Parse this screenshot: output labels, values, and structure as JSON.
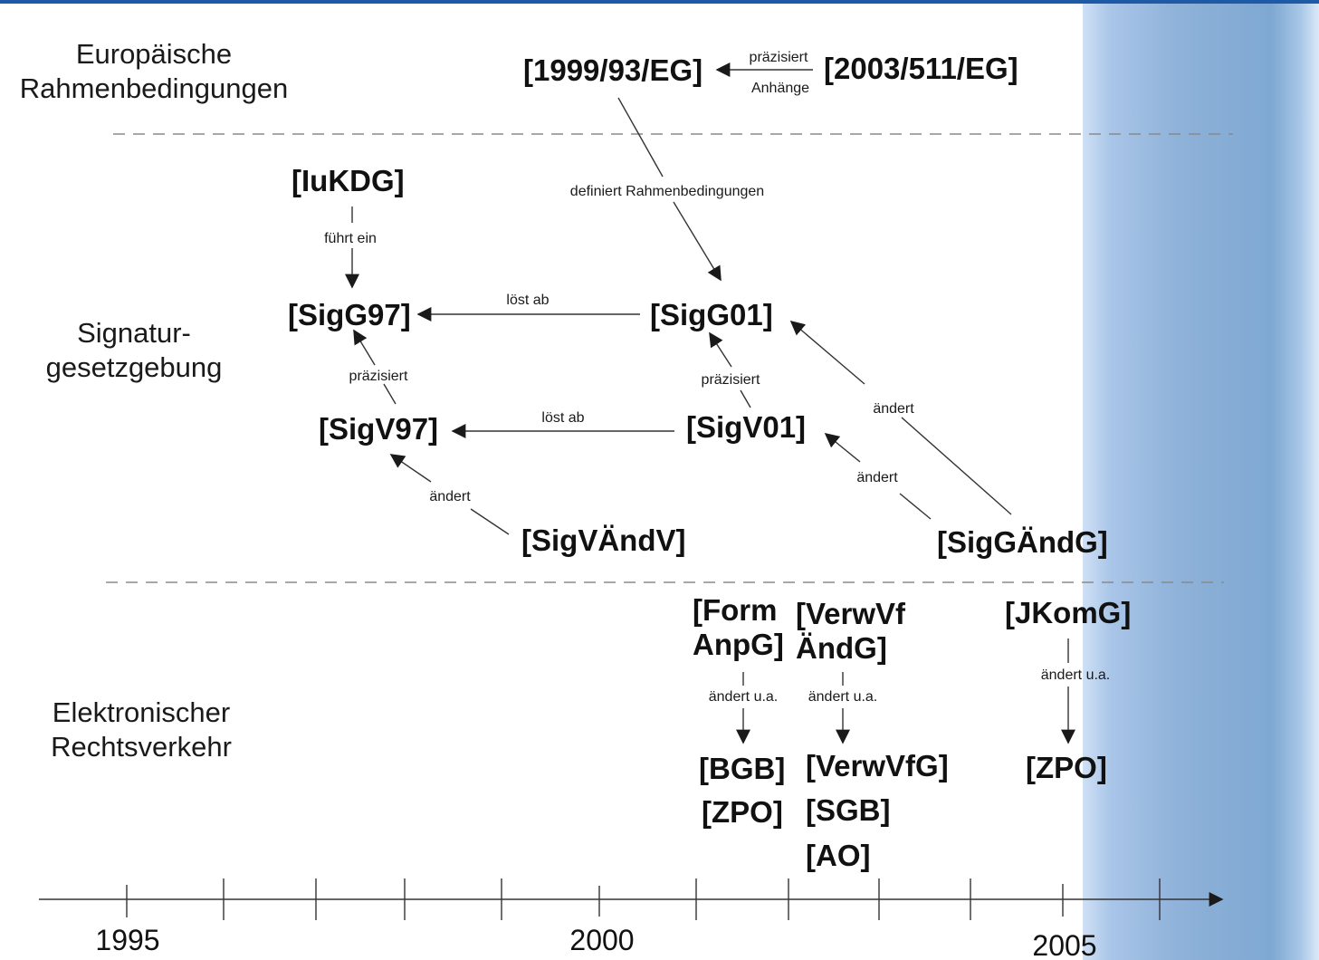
{
  "rows": {
    "european": [
      "Europäische",
      "Rahmenbedingungen"
    ],
    "signature": [
      "Signatur-",
      "gesetzgebung"
    ],
    "electronic": [
      "Elektronischer",
      "Rechtsverkehr"
    ]
  },
  "nodes": {
    "eg1999": "[1999/93/EG]",
    "eg2003": "[2003/511/EG]",
    "iukdg": "[IuKDG]",
    "sigg97": "[SigG97]",
    "sigg01": "[SigG01]",
    "sigv97": "[SigV97]",
    "sigv01": "[SigV01]",
    "sigvaendv": "[SigVÄndV]",
    "siggaendg": "[SigGÄndG]",
    "formanpg": [
      "[Form",
      "AnpG]"
    ],
    "verwvfaendg": [
      "[VerwVf",
      "ÄndG]"
    ],
    "jkomg": "[JKomG]",
    "bgb": "[BGB]",
    "zpo_a": "[ZPO]",
    "verwvfg": "[VerwVfG]",
    "sgb": "[SGB]",
    "ao": "[AO]",
    "zpo_b": "[ZPO]"
  },
  "edges": {
    "praezisiert_top": "präzisiert",
    "anhaenge": "Anhänge",
    "definiert": "definiert Rahmenbedingungen",
    "fuehrt_ein": "führt ein",
    "loest_ab_1": "löst ab",
    "praezisiert_1": "präzisiert",
    "praezisiert_2": "präzisiert",
    "loest_ab_2": "löst ab",
    "aendert_1": "ändert",
    "aendert_2": "ändert",
    "aendert_3": "ändert",
    "aendert_ua_1": "ändert u.a.",
    "aendert_ua_2": "ändert u.a.",
    "aendert_ua_3": "ändert u.a."
  },
  "timeline": {
    "years": [
      "1995",
      "2000",
      "2005"
    ]
  },
  "colors": {
    "highlight_band": "#8fb2d9",
    "top_bar": "#1f5aa6"
  }
}
